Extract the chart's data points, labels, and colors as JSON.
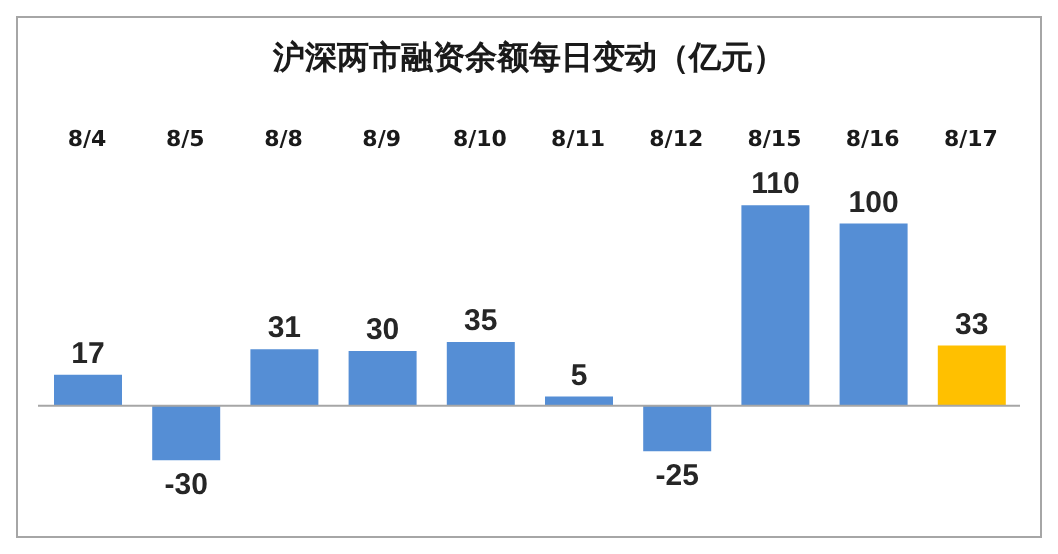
{
  "chart_data": {
    "type": "bar",
    "title": "沪深两市融资余额每日变动（亿元）",
    "categories": [
      "8/4",
      "8/5",
      "8/8",
      "8/9",
      "8/10",
      "8/11",
      "8/12",
      "8/15",
      "8/16",
      "8/17"
    ],
    "values": [
      17,
      -30,
      31,
      30,
      35,
      5,
      -25,
      110,
      100,
      33
    ],
    "colors": [
      "#558ed5",
      "#558ed5",
      "#558ed5",
      "#558ed5",
      "#558ed5",
      "#558ed5",
      "#558ed5",
      "#558ed5",
      "#558ed5",
      "#ffc000"
    ],
    "data_labels": true,
    "grid": false,
    "legend": false
  }
}
